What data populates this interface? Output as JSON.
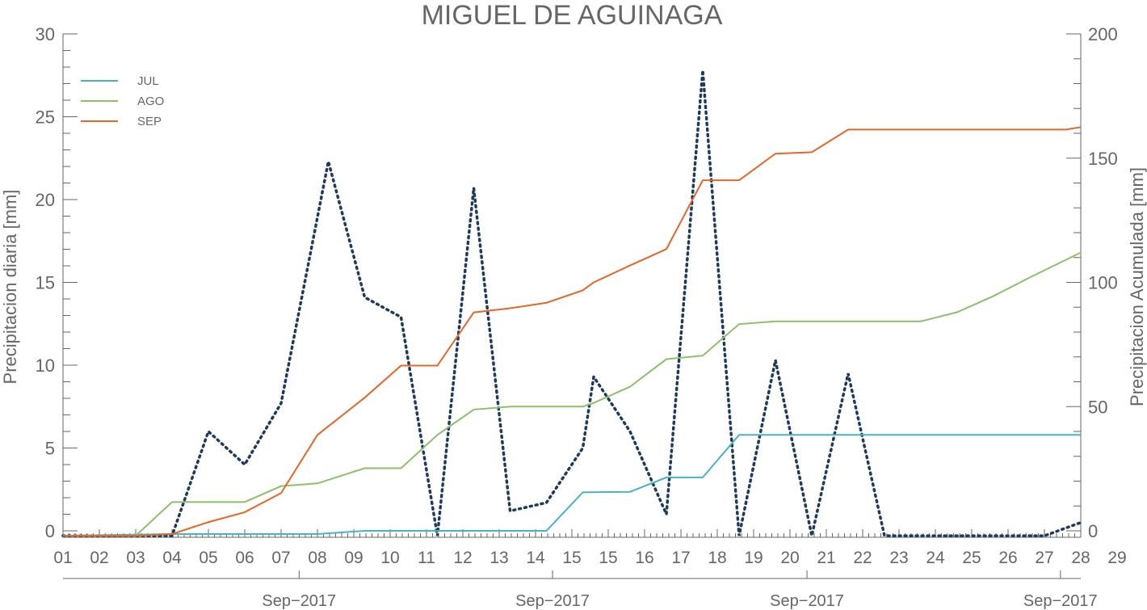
{
  "chart_data": {
    "type": "line",
    "title": "MIGUEL DE AGUINAGA",
    "ylabel_left": "Precipitacion diaria [mm]",
    "ylabel_right": "Precipitacion Acumulada [mm]",
    "ylim_left": [
      0,
      30
    ],
    "ylim_right": [
      0,
      200
    ],
    "yticks_left": [
      "0",
      "5",
      "10",
      "15",
      "20",
      "25",
      "30"
    ],
    "yticks_right": [
      "0",
      "50",
      "100",
      "150",
      "200"
    ],
    "x_tick_labels": [
      "01",
      "02",
      "03",
      "04",
      "05",
      "06",
      "07",
      "08",
      "09",
      "10",
      "11",
      "12",
      "13",
      "14",
      "15",
      "15",
      "16",
      "17",
      "18",
      "19",
      "20",
      "21",
      "22",
      "23",
      "24",
      "25",
      "26",
      "27",
      "28",
      "29"
    ],
    "date_labels": [
      "Sep−2017",
      "Sep−2017",
      "Sep−2017",
      "Sep−2017"
    ],
    "grid": false,
    "legend_position": "top-left",
    "daily_series": {
      "axis": "left",
      "style": "dotted",
      "color": "#1f3a5f",
      "points": [
        [
          1,
          -0.3
        ],
        [
          2,
          -0.3
        ],
        [
          3,
          -0.3
        ],
        [
          4,
          -0.3
        ],
        [
          5,
          6.0
        ],
        [
          6,
          4.0
        ],
        [
          7,
          7.7
        ],
        [
          8.3,
          22.3
        ],
        [
          9.3,
          14.1
        ],
        [
          10.3,
          12.9
        ],
        [
          11.3,
          -0.3
        ],
        [
          12.3,
          20.7
        ],
        [
          13.3,
          1.2
        ],
        [
          14.3,
          1.7
        ],
        [
          15.3,
          5.0
        ],
        [
          15.6,
          9.3
        ],
        [
          16.6,
          6.0
        ],
        [
          17.6,
          1.0
        ],
        [
          18.6,
          27.8
        ],
        [
          19.6,
          -0.3
        ],
        [
          20.6,
          10.3
        ],
        [
          21.6,
          -0.3
        ],
        [
          22.6,
          9.5
        ],
        [
          23.6,
          -0.3
        ],
        [
          24,
          -0.3
        ],
        [
          25,
          -0.3
        ],
        [
          26,
          -0.3
        ],
        [
          27,
          -0.3
        ],
        [
          28,
          -0.3
        ],
        [
          29,
          0.5
        ]
      ]
    },
    "series": [
      {
        "name": "JUL",
        "axis": "right",
        "color": "#4bb3be",
        "points": [
          [
            1,
            -2
          ],
          [
            4,
            -1.3
          ],
          [
            7,
            -1.3
          ],
          [
            8,
            -1.3
          ],
          [
            9.3,
            0
          ],
          [
            10.3,
            0
          ],
          [
            11.3,
            0
          ],
          [
            12.3,
            0
          ],
          [
            13.3,
            0
          ],
          [
            14.3,
            0
          ],
          [
            15.3,
            15.5
          ],
          [
            16.6,
            15.7
          ],
          [
            17.6,
            21.5
          ],
          [
            18.6,
            21.5
          ],
          [
            19.6,
            38.6
          ],
          [
            20.6,
            38.6
          ],
          [
            21.6,
            38.6
          ],
          [
            22.6,
            38.6
          ],
          [
            23.6,
            38.6
          ],
          [
            24,
            38.6
          ],
          [
            25,
            38.6
          ],
          [
            26,
            38.6
          ],
          [
            27,
            38.6
          ],
          [
            28,
            38.6
          ],
          [
            29,
            38.6
          ]
        ]
      },
      {
        "name": "AGO",
        "axis": "right",
        "color": "#8cc06a",
        "points": [
          [
            1,
            -2
          ],
          [
            3,
            -2
          ],
          [
            4,
            11.6
          ],
          [
            6,
            11.6
          ],
          [
            7,
            18.0
          ],
          [
            8,
            19.1
          ],
          [
            9.3,
            25.2
          ],
          [
            10.3,
            25.2
          ],
          [
            11.3,
            38.6
          ],
          [
            12.3,
            48.8
          ],
          [
            13.3,
            50.0
          ],
          [
            14.3,
            50.0
          ],
          [
            15.3,
            50.0
          ],
          [
            15.6,
            51.5
          ],
          [
            16.6,
            58.0
          ],
          [
            17.6,
            69.1
          ],
          [
            18.6,
            70.5
          ],
          [
            19.6,
            83.2
          ],
          [
            20.6,
            84.3
          ],
          [
            21.6,
            84.3
          ],
          [
            22.6,
            84.3
          ],
          [
            23.6,
            84.3
          ],
          [
            24.6,
            84.3
          ],
          [
            25.6,
            88.0
          ],
          [
            26.6,
            94.5
          ],
          [
            27.6,
            102.0
          ],
          [
            29,
            112.0
          ]
        ]
      },
      {
        "name": "SEP",
        "axis": "right",
        "color": "#e4672a",
        "points": [
          [
            1,
            -2
          ],
          [
            3,
            -2
          ],
          [
            4,
            -1.3
          ],
          [
            5,
            3.5
          ],
          [
            6,
            7.5
          ],
          [
            7,
            15.2
          ],
          [
            8,
            38.6
          ],
          [
            9.3,
            53.6
          ],
          [
            10.3,
            66.5
          ],
          [
            11.3,
            66.5
          ],
          [
            12.3,
            87.9
          ],
          [
            13.3,
            89.6
          ],
          [
            14.3,
            91.8
          ],
          [
            15.3,
            96.8
          ],
          [
            15.6,
            100.0
          ],
          [
            16.6,
            106.8
          ],
          [
            17.6,
            113.4
          ],
          [
            18.6,
            141.1
          ],
          [
            19.6,
            141.1
          ],
          [
            20.6,
            151.8
          ],
          [
            21.6,
            152.4
          ],
          [
            22.6,
            161.5
          ],
          [
            23.6,
            161.5
          ],
          [
            24.6,
            161.5
          ],
          [
            25.6,
            161.5
          ],
          [
            26.6,
            161.5
          ],
          [
            27.6,
            161.5
          ],
          [
            28.6,
            161.5
          ],
          [
            29,
            162.5
          ]
        ]
      }
    ]
  }
}
